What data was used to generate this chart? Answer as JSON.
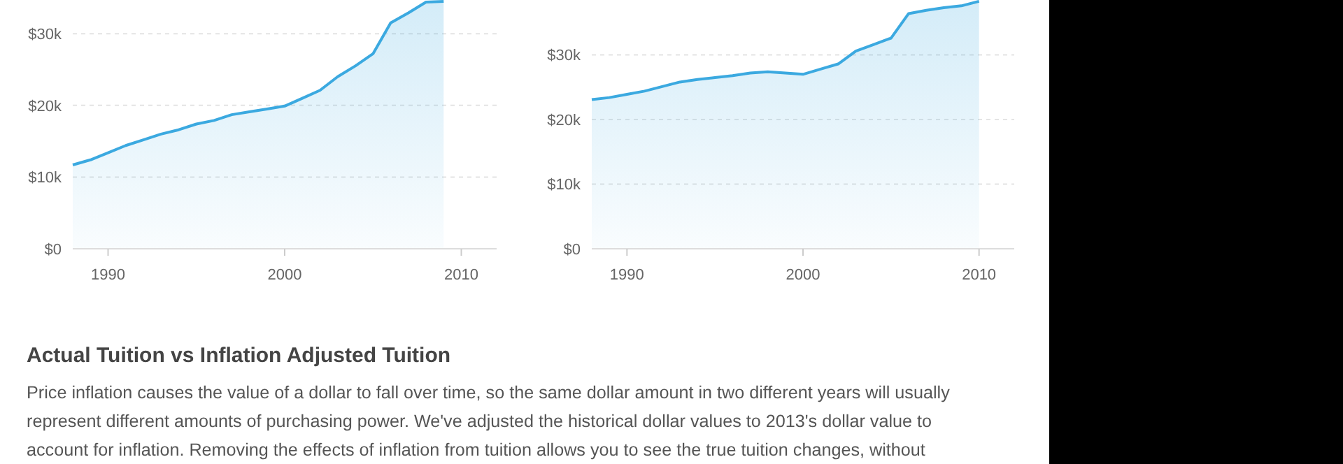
{
  "chart_data": [
    {
      "type": "area",
      "x": [
        1988,
        1989,
        1990,
        1991,
        1992,
        1993,
        1994,
        1995,
        1996,
        1997,
        1998,
        1999,
        2000,
        2001,
        2002,
        2003,
        2004,
        2005,
        2006,
        2007,
        2008,
        2009
      ],
      "series": [
        {
          "color": "#3ba9e0",
          "values": [
            11700,
            12400,
            13400,
            14400,
            15200,
            16000,
            16600,
            17400,
            17900,
            18700,
            19100,
            19500,
            19900,
            21000,
            22100,
            24000,
            25500,
            27200,
            31500,
            32900,
            34400,
            34500
          ]
        }
      ],
      "xlim": [
        1988,
        2012
      ],
      "ylim": [
        0,
        34700
      ],
      "xticks": [
        1990,
        2000,
        2010
      ],
      "yticks": [
        {
          "value": 0,
          "label": "$0"
        },
        {
          "value": 10000,
          "label": "$10k"
        },
        {
          "value": 20000,
          "label": "$20k"
        },
        {
          "value": 30000,
          "label": "$30k"
        }
      ],
      "grid": "y"
    },
    {
      "type": "area",
      "x": [
        1988,
        1989,
        1990,
        1991,
        1992,
        1993,
        1994,
        1995,
        1996,
        1997,
        1998,
        1999,
        2000,
        2001,
        2002,
        2003,
        2004,
        2005,
        2006,
        2007,
        2008,
        2009,
        2010
      ],
      "series": [
        {
          "color": "#3ba9e0",
          "values": [
            23100,
            23400,
            23900,
            24400,
            25100,
            25800,
            26200,
            26500,
            26800,
            27200,
            27400,
            27200,
            27000,
            27800,
            28600,
            30600,
            31600,
            32600,
            36400,
            36900,
            37300,
            37600,
            38300
          ]
        }
      ],
      "xlim": [
        1988,
        2012
      ],
      "ylim": [
        0,
        38500
      ],
      "xticks": [
        1990,
        2000,
        2010
      ],
      "yticks": [
        {
          "value": 0,
          "label": "$0"
        },
        {
          "value": 10000,
          "label": "$10k"
        },
        {
          "value": 20000,
          "label": "$20k"
        },
        {
          "value": 30000,
          "label": "$30k"
        }
      ],
      "grid": "y"
    },
    {
      "type": "other",
      "title": "Actual Tuition vs Inflation Adjusted Tuition",
      "annotations": [
        "Price inflation causes the value of a dollar to fall over time, so the same dollar amount in two different years will usually",
        "represent different amounts of purchasing power. We've adjusted the historical dollar values to 2013's dollar value to",
        "account for inflation. Removing the effects of inflation from tuition allows you to see the true tuition changes, without"
      ]
    }
  ]
}
